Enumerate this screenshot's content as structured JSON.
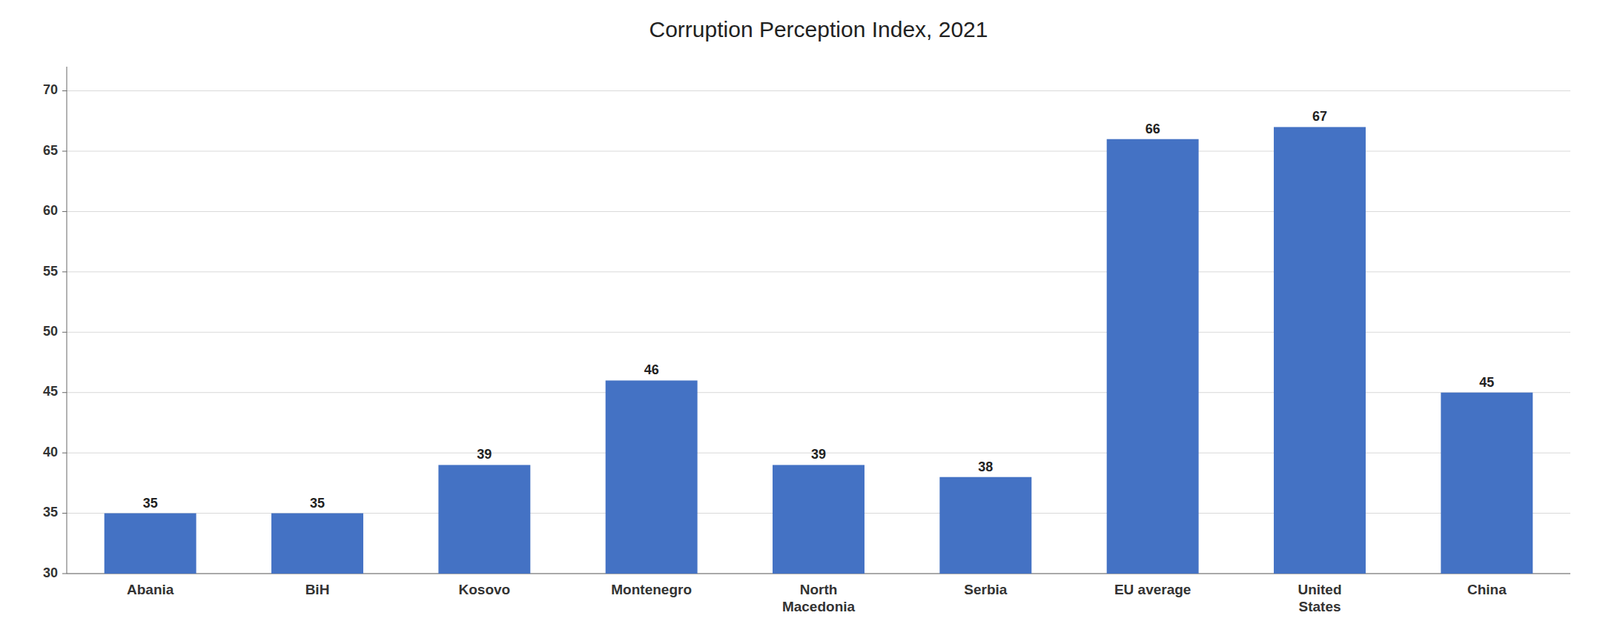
{
  "chart_data": {
    "type": "bar",
    "title": "Corruption Perception Index, 2021",
    "categories": [
      "Abania",
      "BiH",
      "Kosovo",
      "Montenegro",
      "North\nMacedonia",
      "Serbia",
      "EU average",
      "United\nStates",
      "China"
    ],
    "values": [
      35,
      35,
      39,
      46,
      39,
      38,
      66,
      67,
      45
    ],
    "color": "#4472C4",
    "ylim": [
      30,
      72
    ],
    "yticks": [
      30,
      35,
      40,
      45,
      50,
      55,
      60,
      65,
      70
    ],
    "grid": true,
    "data_labels": true
  }
}
